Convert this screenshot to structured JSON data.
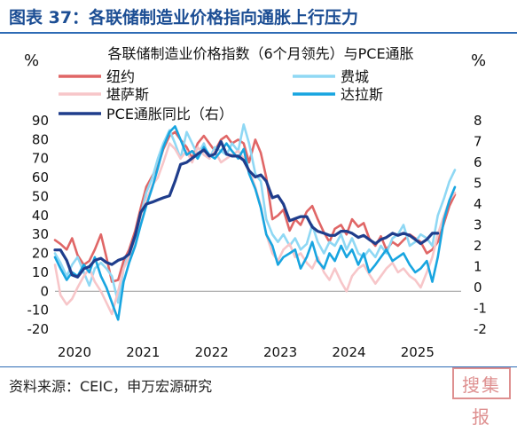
{
  "header": {
    "title": "图表 37：各联储制造业价格指向通胀上行压力"
  },
  "footer": {
    "source": "资料来源：CEIC，申万宏源研究",
    "stamp_text": "搜集报"
  },
  "chart_data": {
    "type": "line",
    "title": "各联储制造业价格指数（6个月领先）与PCE通胀",
    "ylabel_left": "%",
    "ylabel_right": "%",
    "ylim_left": [
      -20,
      90
    ],
    "ylim_right": [
      -2,
      8
    ],
    "yticks_left": [
      -20,
      -10,
      0,
      10,
      20,
      30,
      40,
      50,
      60,
      70,
      80,
      90
    ],
    "yticks_right": [
      -2,
      -1,
      0,
      1,
      2,
      3,
      4,
      5,
      6,
      7,
      8
    ],
    "xlim": [
      2020.0,
      2025.92
    ],
    "xticks": [
      2020,
      2021,
      2022,
      2023,
      2024,
      2025
    ],
    "grid": false,
    "legend": "top",
    "series": [
      {
        "name": "纽约",
        "axis": "left",
        "color": "#e06666",
        "width": 2.6,
        "x": [
          2020.0,
          2020.08,
          2020.17,
          2020.25,
          2020.33,
          2020.42,
          2020.5,
          2020.58,
          2020.67,
          2020.75,
          2020.83,
          2020.92,
          2021.0,
          2021.08,
          2021.17,
          2021.25,
          2021.33,
          2021.42,
          2021.5,
          2021.58,
          2021.67,
          2021.75,
          2021.83,
          2021.92,
          2022.0,
          2022.08,
          2022.17,
          2022.25,
          2022.33,
          2022.42,
          2022.5,
          2022.58,
          2022.67,
          2022.75,
          2022.83,
          2022.92,
          2023.0,
          2023.08,
          2023.17,
          2023.25,
          2023.33,
          2023.42,
          2023.5,
          2023.58,
          2023.67,
          2023.75,
          2023.83,
          2023.92,
          2024.0,
          2024.08,
          2024.17,
          2024.25,
          2024.33,
          2024.42,
          2024.5,
          2024.58,
          2024.67,
          2024.75,
          2024.83,
          2024.92,
          2025.0,
          2025.08,
          2025.17,
          2025.25,
          2025.33,
          2025.42,
          2025.5,
          2025.58,
          2025.67,
          2025.75,
          2025.83
        ],
        "values": [
          27,
          25,
          22,
          28,
          19,
          14,
          16,
          22,
          30,
          18,
          5,
          6,
          16,
          22,
          32,
          44,
          55,
          61,
          66,
          75,
          82,
          84,
          80,
          76,
          70,
          78,
          82,
          78,
          74,
          80,
          82,
          78,
          80,
          78,
          68,
          80,
          73,
          60,
          38,
          40,
          43,
          32,
          38,
          35,
          42,
          45,
          38,
          31,
          26,
          33,
          35,
          30,
          38,
          34,
          36,
          28,
          24,
          29,
          22,
          26,
          24,
          27,
          30,
          28,
          26,
          20,
          22,
          26,
          36,
          45,
          51
        ]
      },
      {
        "name": "费城",
        "axis": "left",
        "color": "#8fd8f4",
        "width": 2.6,
        "x": [
          2020.0,
          2020.08,
          2020.17,
          2020.25,
          2020.33,
          2020.42,
          2020.5,
          2020.58,
          2020.67,
          2020.75,
          2020.83,
          2020.92,
          2021.0,
          2021.08,
          2021.17,
          2021.25,
          2021.33,
          2021.42,
          2021.5,
          2021.58,
          2021.67,
          2021.75,
          2021.83,
          2021.92,
          2022.0,
          2022.08,
          2022.17,
          2022.25,
          2022.33,
          2022.42,
          2022.5,
          2022.58,
          2022.67,
          2022.75,
          2022.83,
          2022.92,
          2023.0,
          2023.08,
          2023.17,
          2023.25,
          2023.33,
          2023.42,
          2023.5,
          2023.58,
          2023.67,
          2023.75,
          2023.83,
          2023.92,
          2024.0,
          2024.08,
          2024.17,
          2024.25,
          2024.33,
          2024.42,
          2024.5,
          2024.58,
          2024.67,
          2024.75,
          2024.83,
          2024.92,
          2025.0,
          2025.08,
          2025.17,
          2025.25,
          2025.33,
          2025.42,
          2025.5,
          2025.58,
          2025.67,
          2025.75,
          2025.83
        ],
        "values": [
          20,
          15,
          8,
          14,
          18,
          10,
          3,
          12,
          15,
          12,
          8,
          -6,
          12,
          20,
          28,
          40,
          52,
          60,
          70,
          78,
          85,
          78,
          70,
          84,
          78,
          72,
          78,
          70,
          76,
          74,
          72,
          78,
          74,
          88,
          78,
          62,
          58,
          38,
          30,
          26,
          30,
          24,
          28,
          22,
          25,
          35,
          26,
          20,
          26,
          24,
          30,
          22,
          28,
          20,
          18,
          22,
          18,
          24,
          20,
          28,
          30,
          35,
          24,
          26,
          30,
          28,
          24,
          40,
          49,
          58,
          64
        ]
      },
      {
        "name": "堪萨斯",
        "axis": "left",
        "color": "#f7c6c9",
        "width": 2.6,
        "x": [
          2020.0,
          2020.08,
          2020.17,
          2020.25,
          2020.33,
          2020.42,
          2020.5,
          2020.58,
          2020.67,
          2020.75,
          2020.83,
          2020.92,
          2021.0,
          2021.08,
          2021.17,
          2021.25,
          2021.33,
          2021.42,
          2021.5,
          2021.58,
          2021.67,
          2021.75,
          2021.83,
          2021.92,
          2022.0,
          2022.08,
          2022.17,
          2022.25,
          2022.33,
          2022.42,
          2022.5,
          2022.58,
          2022.67,
          2022.75,
          2022.83,
          2022.92,
          2023.0,
          2023.08,
          2023.17,
          2023.25,
          2023.33,
          2023.42,
          2023.5,
          2023.58,
          2023.67,
          2023.75,
          2023.83,
          2023.92,
          2024.0,
          2024.08,
          2024.17,
          2024.25,
          2024.33,
          2024.42,
          2024.5,
          2024.58,
          2024.67,
          2024.75,
          2024.83,
          2024.92,
          2025.0,
          2025.08,
          2025.17,
          2025.25,
          2025.33,
          2025.42,
          2025.5,
          2025.58,
          2025.67,
          2025.75,
          2025.83
        ],
        "values": [
          14,
          -2,
          -7,
          -4,
          2,
          8,
          12,
          5,
          0,
          -6,
          -12,
          0,
          12,
          18,
          28,
          40,
          48,
          56,
          60,
          68,
          78,
          75,
          70,
          74,
          68,
          76,
          72,
          70,
          74,
          68,
          70,
          72,
          74,
          70,
          64,
          55,
          45,
          30,
          20,
          16,
          22,
          25,
          18,
          20,
          15,
          12,
          18,
          10,
          6,
          12,
          5,
          0,
          8,
          12,
          14,
          9,
          4,
          8,
          12,
          15,
          10,
          12,
          8,
          6,
          2,
          10,
          18,
          30,
          40,
          48,
          52
        ]
      },
      {
        "name": "达拉斯",
        "axis": "left",
        "color": "#18a5e0",
        "width": 2.6,
        "x": [
          2020.0,
          2020.08,
          2020.17,
          2020.25,
          2020.33,
          2020.42,
          2020.5,
          2020.58,
          2020.67,
          2020.75,
          2020.83,
          2020.92,
          2021.0,
          2021.08,
          2021.17,
          2021.25,
          2021.33,
          2021.42,
          2021.5,
          2021.58,
          2021.67,
          2021.75,
          2021.83,
          2021.92,
          2022.0,
          2022.08,
          2022.17,
          2022.25,
          2022.33,
          2022.42,
          2022.5,
          2022.58,
          2022.67,
          2022.75,
          2022.83,
          2022.92,
          2023.0,
          2023.08,
          2023.17,
          2023.25,
          2023.33,
          2023.42,
          2023.5,
          2023.58,
          2023.67,
          2023.75,
          2023.83,
          2023.92,
          2024.0,
          2024.08,
          2024.17,
          2024.25,
          2024.33,
          2024.42,
          2024.5,
          2024.58,
          2024.67,
          2024.75,
          2024.83,
          2024.92,
          2025.0,
          2025.08,
          2025.17,
          2025.25,
          2025.33,
          2025.42,
          2025.5,
          2025.58,
          2025.67,
          2025.75,
          2025.83
        ],
        "values": [
          18,
          12,
          6,
          10,
          8,
          14,
          10,
          18,
          8,
          2,
          -6,
          -15,
          5,
          15,
          24,
          35,
          45,
          55,
          65,
          76,
          84,
          87,
          80,
          72,
          74,
          70,
          76,
          72,
          70,
          74,
          78,
          74,
          70,
          75,
          62,
          54,
          44,
          30,
          24,
          14,
          18,
          20,
          22,
          12,
          18,
          26,
          16,
          12,
          20,
          16,
          24,
          18,
          22,
          14,
          20,
          10,
          14,
          18,
          22,
          16,
          18,
          20,
          14,
          10,
          12,
          16,
          5,
          18,
          38,
          48,
          55
        ]
      },
      {
        "name": "PCE通胀同比（右）",
        "axis": "right",
        "color": "#1f3d8c",
        "width": 3.2,
        "x": [
          2020.0,
          2020.08,
          2020.17,
          2020.25,
          2020.33,
          2020.42,
          2020.5,
          2020.58,
          2020.67,
          2020.75,
          2020.83,
          2020.92,
          2021.0,
          2021.08,
          2021.17,
          2021.25,
          2021.33,
          2021.42,
          2021.5,
          2021.58,
          2021.67,
          2021.75,
          2021.83,
          2021.92,
          2022.0,
          2022.08,
          2022.17,
          2022.25,
          2022.33,
          2022.42,
          2022.5,
          2022.58,
          2022.67,
          2022.75,
          2022.83,
          2022.92,
          2023.0,
          2023.08,
          2023.17,
          2023.25,
          2023.33,
          2023.42,
          2023.5,
          2023.58,
          2023.67,
          2023.75,
          2023.83,
          2023.92,
          2024.0,
          2024.08,
          2024.17,
          2024.25,
          2024.33,
          2024.42,
          2024.5,
          2024.58,
          2024.67,
          2024.75,
          2024.83,
          2024.92,
          2025.0,
          2025.08,
          2025.17,
          2025.25,
          2025.33,
          2025.42,
          2025.5,
          2025.58
        ],
        "values": [
          1.8,
          1.8,
          1.3,
          0.6,
          0.5,
          0.9,
          1.0,
          1.3,
          1.4,
          1.2,
          1.1,
          1.3,
          1.4,
          1.6,
          2.5,
          3.6,
          4.0,
          4.1,
          4.2,
          4.3,
          4.4,
          5.1,
          5.9,
          6.0,
          6.2,
          6.4,
          6.6,
          6.3,
          6.4,
          7.0,
          6.4,
          6.3,
          6.3,
          6.1,
          5.6,
          5.3,
          5.4,
          5.1,
          4.3,
          4.4,
          4.0,
          3.2,
          3.3,
          3.4,
          3.4,
          2.9,
          2.7,
          2.6,
          2.5,
          2.5,
          2.7,
          2.7,
          2.6,
          2.4,
          2.5,
          2.3,
          2.1,
          2.3,
          2.4,
          2.6,
          2.5,
          2.6,
          2.5,
          2.3,
          2.1,
          2.3,
          2.6,
          2.6
        ]
      }
    ]
  }
}
